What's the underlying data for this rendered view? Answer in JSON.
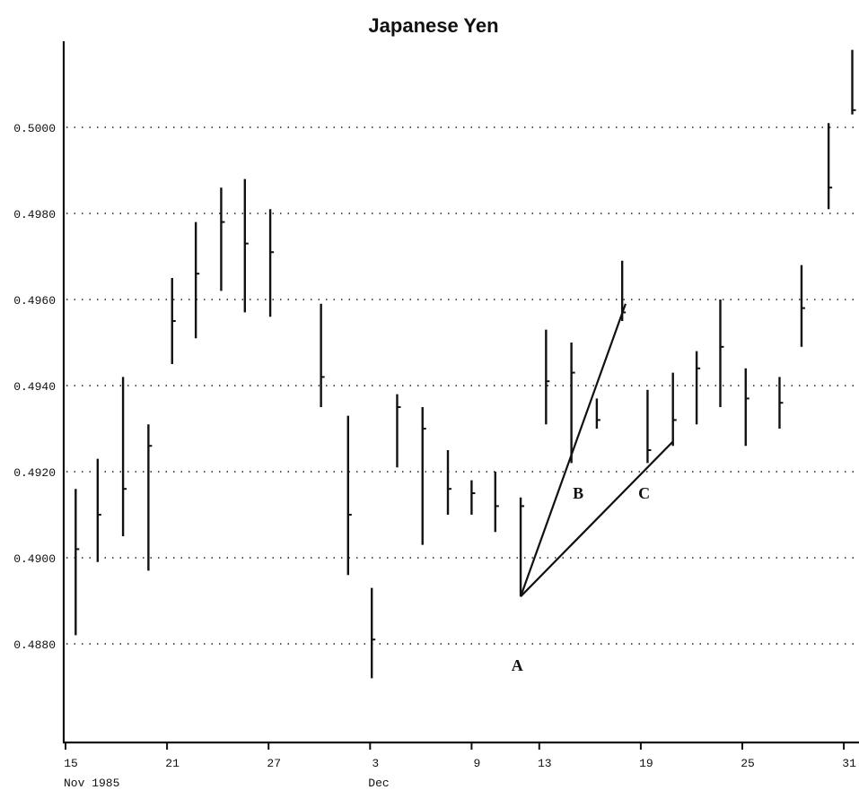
{
  "chart_data": {
    "type": "bar",
    "subtype": "high-low-close",
    "title": "Japanese Yen",
    "xlabel": "",
    "ylabel": "",
    "ylim": [
      0.486,
      0.502
    ],
    "yticks": [
      0.488,
      0.49,
      0.492,
      0.494,
      0.496,
      0.498,
      0.5
    ],
    "ytick_labels": [
      "0.4880",
      "0.4900",
      "0.4920",
      "0.4940",
      "0.4960",
      "0.4980",
      "0.5000"
    ],
    "grid": true,
    "xticks": [
      {
        "label": "15",
        "day": 0
      },
      {
        "label": "21",
        "day": 6
      },
      {
        "label": "27",
        "day": 12
      },
      {
        "label": "3",
        "day": 18
      },
      {
        "label": "9",
        "day": 24
      },
      {
        "label": "13",
        "day": 28
      },
      {
        "label": "19",
        "day": 34
      },
      {
        "label": "25",
        "day": 40
      },
      {
        "label": "31",
        "day": 46
      }
    ],
    "date_labels": [
      {
        "text": "Nov 1985",
        "day": 0
      },
      {
        "text": "Dec",
        "day": 18
      }
    ],
    "bars": [
      {
        "day": 0.6,
        "high": 0.4916,
        "low": 0.4882,
        "close": 0.4902
      },
      {
        "day": 1.9,
        "high": 0.4923,
        "low": 0.4899,
        "close": 0.491
      },
      {
        "day": 3.4,
        "high": 0.4942,
        "low": 0.4905,
        "close": 0.4916
      },
      {
        "day": 4.9,
        "high": 0.4931,
        "low": 0.4897,
        "close": 0.4926
      },
      {
        "day": 6.3,
        "high": 0.4965,
        "low": 0.4945,
        "close": 0.4955
      },
      {
        "day": 7.7,
        "high": 0.4978,
        "low": 0.4951,
        "close": 0.4966
      },
      {
        "day": 9.2,
        "high": 0.4986,
        "low": 0.4962,
        "close": 0.4978
      },
      {
        "day": 10.6,
        "high": 0.4988,
        "low": 0.4957,
        "close": 0.4973
      },
      {
        "day": 12.1,
        "high": 0.4981,
        "low": 0.4956,
        "close": 0.4971
      },
      {
        "day": 15.1,
        "high": 0.4959,
        "low": 0.4935,
        "close": 0.4942
      },
      {
        "day": 16.7,
        "high": 0.4933,
        "low": 0.4896,
        "close": 0.491
      },
      {
        "day": 18.1,
        "high": 0.4893,
        "low": 0.4872,
        "close": 0.4881
      },
      {
        "day": 19.6,
        "high": 0.4938,
        "low": 0.4921,
        "close": 0.4935
      },
      {
        "day": 21.1,
        "high": 0.4935,
        "low": 0.4903,
        "close": 0.493
      },
      {
        "day": 22.6,
        "high": 0.4925,
        "low": 0.491,
        "close": 0.4916
      },
      {
        "day": 24.0,
        "high": 0.4918,
        "low": 0.491,
        "close": 0.4915
      },
      {
        "day": 25.4,
        "high": 0.492,
        "low": 0.4906,
        "close": 0.4912
      },
      {
        "day": 26.9,
        "high": 0.4914,
        "low": 0.4891,
        "close": 0.4912
      },
      {
        "day": 28.4,
        "high": 0.4953,
        "low": 0.4931,
        "close": 0.4941
      },
      {
        "day": 29.9,
        "high": 0.495,
        "low": 0.4922,
        "close": 0.4943
      },
      {
        "day": 31.4,
        "high": 0.4937,
        "low": 0.493,
        "close": 0.4932
      },
      {
        "day": 32.9,
        "high": 0.4969,
        "low": 0.4955,
        "close": 0.4957
      },
      {
        "day": 34.4,
        "high": 0.4939,
        "low": 0.4922,
        "close": 0.4925
      },
      {
        "day": 35.9,
        "high": 0.4943,
        "low": 0.4926,
        "close": 0.4932
      },
      {
        "day": 37.3,
        "high": 0.4948,
        "low": 0.4931,
        "close": 0.4944
      },
      {
        "day": 38.7,
        "high": 0.496,
        "low": 0.4935,
        "close": 0.4949
      },
      {
        "day": 40.2,
        "high": 0.4944,
        "low": 0.4926,
        "close": 0.4937
      },
      {
        "day": 42.2,
        "high": 0.4942,
        "low": 0.493,
        "close": 0.4936
      },
      {
        "day": 43.5,
        "high": 0.4968,
        "low": 0.4949,
        "close": 0.4958
      },
      {
        "day": 45.1,
        "high": 0.5001,
        "low": 0.4981,
        "close": 0.4986
      },
      {
        "day": 46.5,
        "high": 0.5018,
        "low": 0.5003,
        "close": 0.5004
      }
    ],
    "trendlines": [
      {
        "from": {
          "day": 26.9,
          "value": 0.4891
        },
        "to": {
          "day": 33.1,
          "value": 0.4959
        }
      },
      {
        "from": {
          "day": 26.9,
          "value": 0.4891
        },
        "to": {
          "day": 35.9,
          "value": 0.4927
        }
      }
    ],
    "annotations": [
      {
        "text": "A",
        "day": 26.7,
        "value": 0.4875
      },
      {
        "text": "B",
        "day": 30.3,
        "value": 0.4915
      },
      {
        "text": "C",
        "day": 34.2,
        "value": 0.4915
      }
    ]
  }
}
